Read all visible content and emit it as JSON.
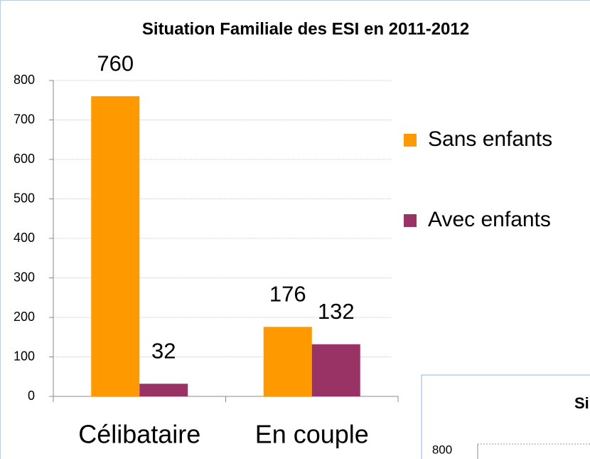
{
  "chart_data": {
    "type": "bar",
    "title": "Situation Familiale des ESI en 2011-2012",
    "categories": [
      "Célibataire",
      "En couple"
    ],
    "series": [
      {
        "name": "Sans enfants",
        "color": "#FF9900",
        "values": [
          760,
          176
        ]
      },
      {
        "name": "Avec enfants",
        "color": "#993366",
        "values": [
          32,
          132
        ]
      }
    ],
    "ylim": [
      0,
      800
    ],
    "yticks": [
      0,
      100,
      200,
      300,
      400,
      500,
      600,
      700,
      800
    ],
    "grid": true,
    "legend": "right"
  },
  "fragment": {
    "title": "Si",
    "tick_label": "800"
  }
}
